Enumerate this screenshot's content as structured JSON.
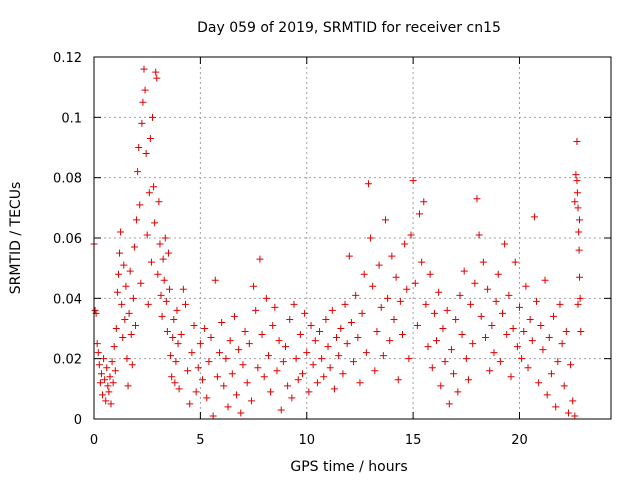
{
  "chart_data": {
    "type": "scatter",
    "title": "Day 059 of 2019, SRMTID for receiver cn15",
    "xlabel": "GPS time / hours",
    "ylabel": "SRMTID / TECUs",
    "xlim": [
      0,
      24.3
    ],
    "ylim": [
      0,
      0.12
    ],
    "x_ticks": [
      0,
      5,
      10,
      15,
      20
    ],
    "x_tick_labels": [
      "0",
      "5",
      "10",
      "15",
      "20"
    ],
    "y_ticks": [
      0,
      0.02,
      0.04,
      0.06,
      0.08,
      0.1,
      0.12
    ],
    "y_tick_labels": [
      "0",
      "0.02",
      "0.04",
      "0.06",
      "0.08",
      "0.1",
      "0.12"
    ],
    "grid": true,
    "marker": "plus",
    "color": "#e00000",
    "series": [
      {
        "name": "SRMTID",
        "points": [
          [
            0.0,
            0.058
          ],
          [
            0.05,
            0.036
          ],
          [
            0.1,
            0.035
          ],
          [
            0.15,
            0.025
          ],
          [
            0.2,
            0.022
          ],
          [
            0.25,
            0.018
          ],
          [
            0.3,
            0.012
          ],
          [
            0.35,
            0.015
          ],
          [
            0.4,
            0.008
          ],
          [
            0.45,
            0.02
          ],
          [
            0.5,
            0.013
          ],
          [
            0.55,
            0.006
          ],
          [
            0.6,
            0.017
          ],
          [
            0.65,
            0.011
          ],
          [
            0.7,
            0.009
          ],
          [
            0.75,
            0.014
          ],
          [
            0.8,
            0.005
          ],
          [
            0.85,
            0.019
          ],
          [
            0.9,
            0.012
          ],
          [
            0.95,
            0.024
          ],
          [
            1.0,
            0.016
          ],
          [
            1.05,
            0.03
          ],
          [
            1.1,
            0.042
          ],
          [
            1.15,
            0.048
          ],
          [
            1.2,
            0.055
          ],
          [
            1.25,
            0.062
          ],
          [
            1.3,
            0.038
          ],
          [
            1.35,
            0.027
          ],
          [
            1.4,
            0.051
          ],
          [
            1.45,
            0.033
          ],
          [
            1.5,
            0.044
          ],
          [
            1.55,
            0.02
          ],
          [
            1.6,
            0.011
          ],
          [
            1.65,
            0.035
          ],
          [
            1.7,
            0.049
          ],
          [
            1.75,
            0.028
          ],
          [
            1.8,
            0.018
          ],
          [
            1.85,
            0.04
          ],
          [
            1.9,
            0.057
          ],
          [
            1.95,
            0.031
          ],
          [
            2.0,
            0.066
          ],
          [
            2.05,
            0.082
          ],
          [
            2.1,
            0.09
          ],
          [
            2.15,
            0.071
          ],
          [
            2.2,
            0.045
          ],
          [
            2.25,
            0.098
          ],
          [
            2.3,
            0.105
          ],
          [
            2.35,
            0.116
          ],
          [
            2.4,
            0.109
          ],
          [
            2.45,
            0.088
          ],
          [
            2.5,
            0.061
          ],
          [
            2.55,
            0.038
          ],
          [
            2.6,
            0.075
          ],
          [
            2.65,
            0.093
          ],
          [
            2.7,
            0.052
          ],
          [
            2.75,
            0.1
          ],
          [
            2.8,
            0.077
          ],
          [
            2.85,
            0.065
          ],
          [
            2.9,
            0.115
          ],
          [
            2.95,
            0.113
          ],
          [
            3.0,
            0.048
          ],
          [
            3.05,
            0.072
          ],
          [
            3.1,
            0.058
          ],
          [
            3.15,
            0.041
          ],
          [
            3.2,
            0.034
          ],
          [
            3.25,
            0.053
          ],
          [
            3.3,
            0.046
          ],
          [
            3.35,
            0.06
          ],
          [
            3.4,
            0.039
          ],
          [
            3.45,
            0.029
          ],
          [
            3.5,
            0.055
          ],
          [
            3.55,
            0.043
          ],
          [
            3.6,
            0.021
          ],
          [
            3.65,
            0.014
          ],
          [
            3.7,
            0.027
          ],
          [
            3.75,
            0.033
          ],
          [
            3.8,
            0.012
          ],
          [
            3.85,
            0.019
          ],
          [
            3.9,
            0.036
          ],
          [
            3.95,
            0.025
          ],
          [
            4.0,
            0.01
          ],
          [
            4.1,
            0.028
          ],
          [
            4.2,
            0.043
          ],
          [
            4.3,
            0.038
          ],
          [
            4.4,
            0.016
          ],
          [
            4.5,
            0.005
          ],
          [
            4.6,
            0.022
          ],
          [
            4.7,
            0.031
          ],
          [
            4.8,
            0.009
          ],
          [
            4.9,
            0.017
          ],
          [
            5.0,
            0.025
          ],
          [
            5.1,
            0.013
          ],
          [
            5.2,
            0.03
          ],
          [
            5.3,
            0.007
          ],
          [
            5.4,
            0.019
          ],
          [
            5.5,
            0.027
          ],
          [
            5.6,
            0.001
          ],
          [
            5.7,
            0.046
          ],
          [
            5.8,
            0.014
          ],
          [
            5.9,
            0.022
          ],
          [
            6.0,
            0.032
          ],
          [
            6.1,
            0.011
          ],
          [
            6.2,
            0.02
          ],
          [
            6.3,
            0.004
          ],
          [
            6.4,
            0.026
          ],
          [
            6.5,
            0.015
          ],
          [
            6.6,
            0.034
          ],
          [
            6.7,
            0.008
          ],
          [
            6.8,
            0.023
          ],
          [
            6.9,
            0.002
          ],
          [
            7.0,
            0.018
          ],
          [
            7.1,
            0.029
          ],
          [
            7.2,
            0.012
          ],
          [
            7.3,
            0.025
          ],
          [
            7.4,
            0.006
          ],
          [
            7.5,
            0.044
          ],
          [
            7.6,
            0.036
          ],
          [
            7.7,
            0.017
          ],
          [
            7.8,
            0.053
          ],
          [
            7.9,
            0.028
          ],
          [
            8.0,
            0.014
          ],
          [
            8.1,
            0.04
          ],
          [
            8.2,
            0.021
          ],
          [
            8.3,
            0.009
          ],
          [
            8.4,
            0.031
          ],
          [
            8.5,
            0.037
          ],
          [
            8.6,
            0.016
          ],
          [
            8.7,
            0.026
          ],
          [
            8.8,
            0.003
          ],
          [
            8.9,
            0.019
          ],
          [
            9.0,
            0.024
          ],
          [
            9.1,
            0.011
          ],
          [
            9.2,
            0.033
          ],
          [
            9.3,
            0.007
          ],
          [
            9.4,
            0.038
          ],
          [
            9.5,
            0.02
          ],
          [
            9.6,
            0.013
          ],
          [
            9.7,
            0.028
          ],
          [
            9.8,
            0.015
          ],
          [
            9.9,
            0.035
          ],
          [
            10.0,
            0.022
          ],
          [
            10.1,
            0.009
          ],
          [
            10.2,
            0.031
          ],
          [
            10.3,
            0.018
          ],
          [
            10.4,
            0.026
          ],
          [
            10.5,
            0.012
          ],
          [
            10.6,
            0.029
          ],
          [
            10.7,
            0.02
          ],
          [
            10.8,
            0.014
          ],
          [
            10.9,
            0.033
          ],
          [
            11.0,
            0.024
          ],
          [
            11.1,
            0.017
          ],
          [
            11.2,
            0.036
          ],
          [
            11.3,
            0.01
          ],
          [
            11.4,
            0.027
          ],
          [
            11.5,
            0.021
          ],
          [
            11.6,
            0.03
          ],
          [
            11.7,
            0.015
          ],
          [
            11.8,
            0.038
          ],
          [
            11.9,
            0.025
          ],
          [
            12.0,
            0.054
          ],
          [
            12.1,
            0.032
          ],
          [
            12.2,
            0.019
          ],
          [
            12.3,
            0.041
          ],
          [
            12.4,
            0.027
          ],
          [
            12.5,
            0.012
          ],
          [
            12.6,
            0.035
          ],
          [
            12.7,
            0.048
          ],
          [
            12.8,
            0.022
          ],
          [
            12.9,
            0.078
          ],
          [
            13.0,
            0.06
          ],
          [
            13.1,
            0.044
          ],
          [
            13.2,
            0.016
          ],
          [
            13.3,
            0.029
          ],
          [
            13.4,
            0.051
          ],
          [
            13.5,
            0.037
          ],
          [
            13.6,
            0.021
          ],
          [
            13.7,
            0.066
          ],
          [
            13.8,
            0.04
          ],
          [
            13.9,
            0.026
          ],
          [
            14.0,
            0.054
          ],
          [
            14.1,
            0.033
          ],
          [
            14.2,
            0.047
          ],
          [
            14.3,
            0.013
          ],
          [
            14.4,
            0.039
          ],
          [
            14.5,
            0.028
          ],
          [
            14.6,
            0.058
          ],
          [
            14.7,
            0.043
          ],
          [
            14.8,
            0.02
          ],
          [
            14.9,
            0.061
          ],
          [
            15.0,
            0.079
          ],
          [
            15.1,
            0.045
          ],
          [
            15.2,
            0.031
          ],
          [
            15.3,
            0.068
          ],
          [
            15.4,
            0.052
          ],
          [
            15.5,
            0.072
          ],
          [
            15.6,
            0.038
          ],
          [
            15.7,
            0.024
          ],
          [
            15.8,
            0.048
          ],
          [
            15.9,
            0.017
          ],
          [
            16.0,
            0.035
          ],
          [
            16.1,
            0.026
          ],
          [
            16.2,
            0.042
          ],
          [
            16.3,
            0.011
          ],
          [
            16.4,
            0.03
          ],
          [
            16.5,
            0.019
          ],
          [
            16.6,
            0.036
          ],
          [
            16.7,
            0.005
          ],
          [
            16.8,
            0.023
          ],
          [
            16.9,
            0.015
          ],
          [
            17.0,
            0.033
          ],
          [
            17.1,
            0.009
          ],
          [
            17.2,
            0.041
          ],
          [
            17.3,
            0.028
          ],
          [
            17.4,
            0.049
          ],
          [
            17.5,
            0.02
          ],
          [
            17.6,
            0.013
          ],
          [
            17.7,
            0.038
          ],
          [
            17.8,
            0.025
          ],
          [
            17.9,
            0.045
          ],
          [
            18.0,
            0.073
          ],
          [
            18.1,
            0.061
          ],
          [
            18.2,
            0.034
          ],
          [
            18.3,
            0.052
          ],
          [
            18.4,
            0.027
          ],
          [
            18.5,
            0.043
          ],
          [
            18.6,
            0.016
          ],
          [
            18.7,
            0.031
          ],
          [
            18.8,
            0.022
          ],
          [
            18.9,
            0.039
          ],
          [
            19.0,
            0.048
          ],
          [
            19.1,
            0.019
          ],
          [
            19.2,
            0.035
          ],
          [
            19.3,
            0.058
          ],
          [
            19.4,
            0.028
          ],
          [
            19.5,
            0.041
          ],
          [
            19.6,
            0.014
          ],
          [
            19.7,
            0.03
          ],
          [
            19.8,
            0.052
          ],
          [
            19.9,
            0.024
          ],
          [
            20.0,
            0.037
          ],
          [
            20.1,
            0.02
          ],
          [
            20.2,
            0.029
          ],
          [
            20.3,
            0.044
          ],
          [
            20.4,
            0.017
          ],
          [
            20.5,
            0.033
          ],
          [
            20.6,
            0.026
          ],
          [
            20.7,
            0.067
          ],
          [
            20.8,
            0.039
          ],
          [
            20.9,
            0.012
          ],
          [
            21.0,
            0.031
          ],
          [
            21.1,
            0.023
          ],
          [
            21.2,
            0.046
          ],
          [
            21.3,
            0.008
          ],
          [
            21.4,
            0.027
          ],
          [
            21.5,
            0.015
          ],
          [
            21.6,
            0.034
          ],
          [
            21.7,
            0.004
          ],
          [
            21.8,
            0.019
          ],
          [
            21.9,
            0.038
          ],
          [
            22.0,
            0.025
          ],
          [
            22.1,
            0.011
          ],
          [
            22.2,
            0.029
          ],
          [
            22.3,
            0.002
          ],
          [
            22.4,
            0.018
          ],
          [
            22.5,
            0.006
          ],
          [
            22.6,
            0.001
          ],
          [
            22.65,
            0.081
          ],
          [
            22.7,
            0.092
          ],
          [
            22.72,
            0.075
          ],
          [
            22.75,
            0.07
          ],
          [
            22.78,
            0.062
          ],
          [
            22.8,
            0.056
          ],
          [
            22.82,
            0.047
          ],
          [
            22.85,
            0.04
          ],
          [
            22.88,
            0.029
          ],
          [
            22.6,
            0.072
          ],
          [
            22.7,
            0.079
          ],
          [
            22.75,
            0.038
          ],
          [
            22.82,
            0.066
          ]
        ]
      }
    ]
  }
}
